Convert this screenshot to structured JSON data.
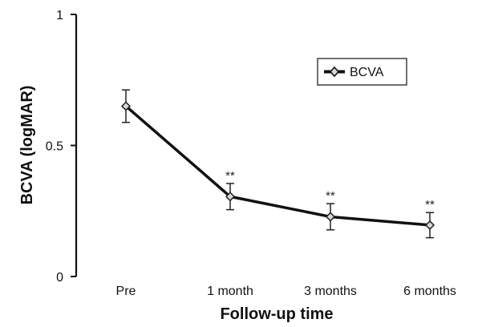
{
  "chart_data": {
    "type": "line",
    "xlabel": "Follow-up time",
    "ylabel": "BCVA (logMAR)",
    "categories": [
      "Pre",
      "1 month",
      "3 months",
      "6 months"
    ],
    "ylim": [
      0,
      1
    ],
    "yticks": [
      0,
      0.5,
      1
    ],
    "ytick_labels": [
      "0",
      "0.5",
      "1"
    ],
    "series": [
      {
        "name": "BCVA",
        "values": [
          0.65,
          0.305,
          0.228,
          0.196
        ],
        "error": [
          0.062,
          0.05,
          0.05,
          0.048
        ],
        "color": "#111111",
        "marker_fill": "#d9d9d9"
      }
    ],
    "annotations": [
      "",
      "**",
      "**",
      "**"
    ],
    "legend": {
      "placement": "top-right"
    },
    "grid": false
  }
}
